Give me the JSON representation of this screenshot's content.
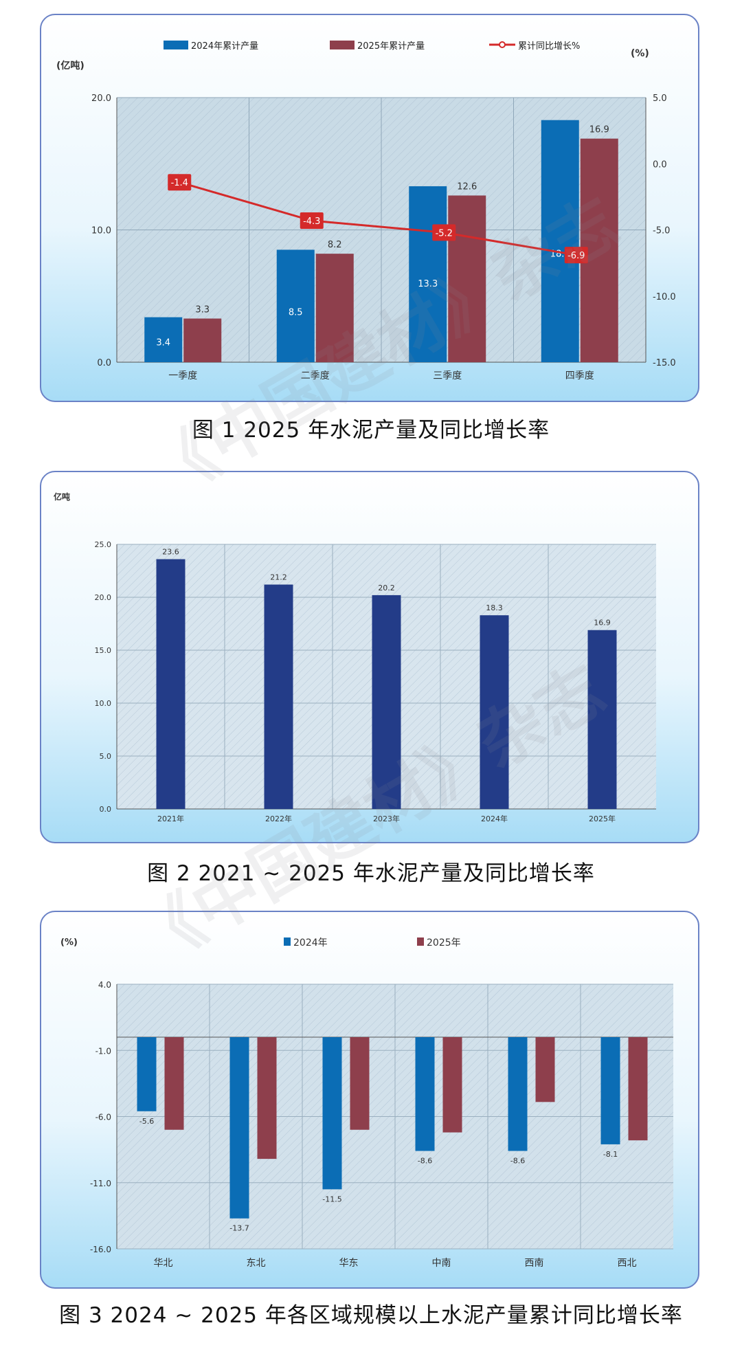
{
  "captions": [
    "图 1  2025 年水泥产量及同比增长率",
    "图 2  2021 ~ 2025 年水泥产量及同比增长率",
    "图 3  2024 ~ 2025 年各区域规模以上水泥产量累计同比增长率"
  ],
  "watermark": "《中国建材》杂志",
  "colors": {
    "blue_2024": "#0b6db5",
    "red_2025": "#8e3f4c",
    "line": "#d42a2a",
    "navy": "#233c88"
  },
  "chart_data": [
    {
      "type": "bar",
      "title": "",
      "categories": [
        "一季度",
        "二季度",
        "三季度",
        "四季度"
      ],
      "series": [
        {
          "name": "2024年累计产量",
          "values": [
            3.4,
            8.5,
            13.3,
            18.3
          ],
          "axis": "left"
        },
        {
          "name": "2025年累计产量",
          "values": [
            3.3,
            8.2,
            12.6,
            16.9
          ],
          "axis": "left"
        },
        {
          "name": "累计同比增长%",
          "type": "line",
          "values": [
            -1.4,
            -4.3,
            -5.2,
            -6.9
          ],
          "axis": "right"
        }
      ],
      "ylabel": "(亿吨)",
      "y2label": "(%)",
      "ylim": [
        0,
        20
      ],
      "y2lim": [
        -15,
        5
      ],
      "yticks": [
        "0.0",
        "10.0",
        "20.0"
      ],
      "y2ticks": [
        "5.0",
        "0.0",
        "-5.0",
        "-10.0",
        "-15.0"
      ],
      "grid": true,
      "legend": "top"
    },
    {
      "type": "bar",
      "title": "",
      "categories": [
        "2021年",
        "2022年",
        "2023年",
        "2024年",
        "2025年"
      ],
      "values": [
        23.6,
        21.2,
        20.2,
        18.3,
        16.9
      ],
      "ylabel": "亿吨",
      "ylim": [
        0,
        25
      ],
      "yticks": [
        "0.0",
        "5.0",
        "10.0",
        "15.0",
        "20.0",
        "25.0"
      ],
      "grid": true
    },
    {
      "type": "bar",
      "title": "",
      "categories": [
        "华北",
        "东北",
        "华东",
        "中南",
        "西南",
        "西北"
      ],
      "series": [
        {
          "name": "2024年",
          "values": [
            -5.6,
            -13.7,
            -11.5,
            -8.6,
            -8.6,
            -8.1
          ]
        },
        {
          "name": "2025年",
          "values": [
            -7.0,
            -9.2,
            -7.0,
            -7.2,
            -4.9,
            -7.8
          ]
        }
      ],
      "value_labels": [
        "-5.6",
        "-13.7",
        "-11.5",
        "-8.6",
        "-8.6",
        "-8.1"
      ],
      "ylabel": "(%)",
      "ylim": [
        -16,
        4
      ],
      "yticks": [
        "4.0",
        "-1.0",
        "-6.0",
        "-11.0",
        "-16.0"
      ],
      "grid": true,
      "legend": "top"
    }
  ]
}
